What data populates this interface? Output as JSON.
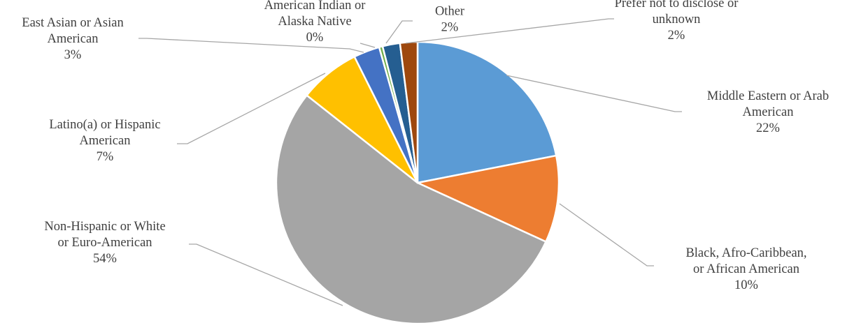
{
  "chart_data": {
    "type": "pie",
    "title": "",
    "slices": [
      {
        "label_lines": [
          "Middle Eastern or Arab",
          "American"
        ],
        "label": "Middle Eastern or Arab American",
        "value": 22,
        "value_label": "22%",
        "color": "#5b9bd5"
      },
      {
        "label_lines": [
          "Black, Afro-Caribbean,",
          "or African American"
        ],
        "label": "Black, Afro-Caribbean, or African American",
        "value": 10,
        "value_label": "10%",
        "color": "#ed7d31"
      },
      {
        "label_lines": [
          "Non-Hispanic or White",
          "or Euro-American"
        ],
        "label": "Non-Hispanic or White or Euro-American",
        "value": 54,
        "value_label": "54%",
        "color": "#a5a5a5"
      },
      {
        "label_lines": [
          "Latino(a) or Hispanic",
          "American"
        ],
        "label": "Latino(a) or Hispanic American",
        "value": 7,
        "value_label": "7%",
        "color": "#ffc000"
      },
      {
        "label_lines": [
          "East Asian or Asian",
          "American"
        ],
        "label": "East Asian or Asian American",
        "value": 3,
        "value_label": "3%",
        "color": "#4472c4"
      },
      {
        "label_lines": [
          "American Indian or",
          "Alaska Native"
        ],
        "label": "American Indian or Alaska Native",
        "value": 0.4,
        "value_label": "0%",
        "color": "#70ad47"
      },
      {
        "label_lines": [
          "Other"
        ],
        "label": "Other",
        "value": 2,
        "value_label": "2%",
        "color": "#255e91"
      },
      {
        "label_lines": [
          "Prefer not to disclose or",
          "unknown"
        ],
        "label": "Prefer not to disclose or unknown",
        "value": 2,
        "value_label": "2%",
        "color": "#9e480e"
      }
    ]
  }
}
